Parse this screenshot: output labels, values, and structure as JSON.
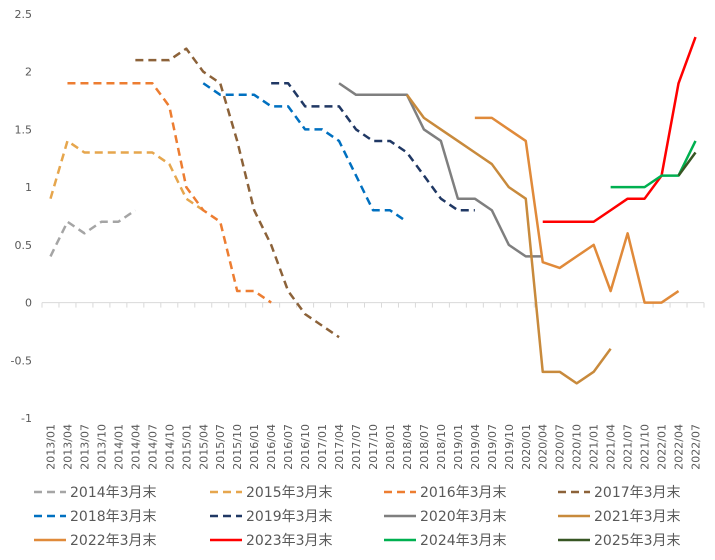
{
  "chart_data": {
    "type": "line",
    "title": "",
    "xlabel": "",
    "ylabel": "",
    "ylim": [
      -1,
      2.5
    ],
    "yticks": [
      -1,
      -0.5,
      0,
      0.5,
      1,
      1.5,
      2,
      2.5
    ],
    "ytick_labels": [
      "-1",
      "-0.5",
      "0",
      "0.5",
      "1",
      "1.5",
      "2",
      "2.5"
    ],
    "grid": "none",
    "legend_position": "bottom",
    "categories": [
      "2013/01",
      "2013/04",
      "2013/07",
      "2013/10",
      "2014/01",
      "2014/04",
      "2014/07",
      "2014/10",
      "2015/01",
      "2015/04",
      "2015/07",
      "2015/10",
      "2016/01",
      "2016/04",
      "2016/07",
      "2016/10",
      "2017/01",
      "2017/04",
      "2017/07",
      "2017/10",
      "2018/01",
      "2018/04",
      "2018/07",
      "2018/10",
      "2019/01",
      "2019/04",
      "2019/07",
      "2019/10",
      "2020/01",
      "2020/04",
      "2020/07",
      "2020/10",
      "2021/01",
      "2021/04",
      "2021/07",
      "2021/10",
      "2022/01",
      "2022/04",
      "2022/07"
    ],
    "series": [
      {
        "name": "2014年3月末",
        "color": "#a5a5a5",
        "dash": true,
        "values": [
          0.4,
          0.7,
          0.6,
          0.7,
          0.7,
          0.8,
          null,
          null,
          null,
          null,
          null,
          null,
          null,
          null,
          null,
          null,
          null,
          null,
          null,
          null,
          null,
          null,
          null,
          null,
          null,
          null,
          null,
          null,
          null,
          null,
          null,
          null,
          null,
          null,
          null,
          null,
          null,
          null,
          null
        ]
      },
      {
        "name": "2015年3月末",
        "color": "#e6a64d",
        "dash": true,
        "values": [
          0.9,
          1.4,
          1.3,
          1.3,
          1.3,
          1.3,
          1.3,
          1.2,
          0.9,
          0.8,
          null,
          null,
          null,
          null,
          null,
          null,
          null,
          null,
          null,
          null,
          null,
          null,
          null,
          null,
          null,
          null,
          null,
          null,
          null,
          null,
          null,
          null,
          null,
          null,
          null,
          null,
          null,
          null,
          null
        ]
      },
      {
        "name": "2016年3月末",
        "color": "#ed7d31",
        "dash": true,
        "values": [
          null,
          1.9,
          1.9,
          1.9,
          1.9,
          1.9,
          1.9,
          1.7,
          1.0,
          0.8,
          0.7,
          0.1,
          0.1,
          0.0,
          null,
          null,
          null,
          null,
          null,
          null,
          null,
          null,
          null,
          null,
          null,
          null,
          null,
          null,
          null,
          null,
          null,
          null,
          null,
          null,
          null,
          null,
          null,
          null,
          null
        ]
      },
      {
        "name": "2017年3月末",
        "color": "#8c6239",
        "dash": true,
        "values": [
          null,
          null,
          null,
          null,
          null,
          2.1,
          2.1,
          2.1,
          2.2,
          2.0,
          1.9,
          1.4,
          0.8,
          0.5,
          0.1,
          -0.1,
          -0.2,
          -0.3,
          null,
          null,
          null,
          null,
          null,
          null,
          null,
          null,
          null,
          null,
          null,
          null,
          null,
          null,
          null,
          null,
          null,
          null,
          null,
          null,
          null
        ]
      },
      {
        "name": "2018年3月末",
        "color": "#0070c0",
        "dash": true,
        "values": [
          null,
          null,
          null,
          null,
          null,
          null,
          null,
          null,
          null,
          1.9,
          1.8,
          1.8,
          1.8,
          1.7,
          1.7,
          1.5,
          1.5,
          1.4,
          1.1,
          0.8,
          0.8,
          0.7,
          null,
          null,
          null,
          null,
          null,
          null,
          null,
          null,
          null,
          null,
          null,
          null,
          null,
          null,
          null,
          null,
          null
        ]
      },
      {
        "name": "2019年3月末",
        "color": "#203864",
        "dash": true,
        "values": [
          null,
          null,
          null,
          null,
          null,
          null,
          null,
          null,
          null,
          null,
          null,
          null,
          null,
          1.9,
          1.9,
          1.7,
          1.7,
          1.7,
          1.5,
          1.4,
          1.4,
          1.3,
          1.1,
          0.9,
          0.8,
          0.8,
          null,
          null,
          null,
          null,
          null,
          null,
          null,
          null,
          null,
          null,
          null,
          null,
          null
        ]
      },
      {
        "name": "2020年3月末",
        "color": "#7f7f7f",
        "dash": false,
        "values": [
          null,
          null,
          null,
          null,
          null,
          null,
          null,
          null,
          null,
          null,
          null,
          null,
          null,
          null,
          null,
          null,
          null,
          1.9,
          1.8,
          1.8,
          1.8,
          1.8,
          1.5,
          1.4,
          0.9,
          0.9,
          0.8,
          0.5,
          0.4,
          0.4,
          null,
          null,
          null,
          null,
          null,
          null,
          null,
          null,
          null
        ]
      },
      {
        "name": "2021年3月末",
        "color": "#c88a3c",
        "dash": false,
        "values": [
          null,
          null,
          null,
          null,
          null,
          null,
          null,
          null,
          null,
          null,
          null,
          null,
          null,
          null,
          null,
          null,
          null,
          null,
          null,
          null,
          null,
          1.8,
          1.6,
          1.5,
          1.4,
          1.3,
          1.2,
          1.0,
          0.9,
          -0.6,
          -0.6,
          -0.7,
          -0.6,
          -0.4,
          null,
          null,
          null,
          null,
          null
        ]
      },
      {
        "name": "2022年3月末",
        "color": "#e08a3a",
        "dash": false,
        "values": [
          null,
          null,
          null,
          null,
          null,
          null,
          null,
          null,
          null,
          null,
          null,
          null,
          null,
          null,
          null,
          null,
          null,
          null,
          null,
          null,
          null,
          null,
          null,
          null,
          null,
          1.6,
          1.6,
          1.5,
          1.4,
          0.35,
          0.3,
          0.4,
          0.5,
          0.1,
          0.6,
          0.0,
          0.0,
          0.1,
          null
        ]
      },
      {
        "name": "2023年3月末",
        "color": "#ff0000",
        "dash": false,
        "values": [
          null,
          null,
          null,
          null,
          null,
          null,
          null,
          null,
          null,
          null,
          null,
          null,
          null,
          null,
          null,
          null,
          null,
          null,
          null,
          null,
          null,
          null,
          null,
          null,
          null,
          null,
          null,
          null,
          null,
          0.7,
          0.7,
          0.7,
          0.7,
          0.8,
          0.9,
          0.9,
          1.1,
          1.9,
          2.3
        ]
      },
      {
        "name": "2024年3月末",
        "color": "#00b050",
        "dash": false,
        "values": [
          null,
          null,
          null,
          null,
          null,
          null,
          null,
          null,
          null,
          null,
          null,
          null,
          null,
          null,
          null,
          null,
          null,
          null,
          null,
          null,
          null,
          null,
          null,
          null,
          null,
          null,
          null,
          null,
          null,
          null,
          null,
          null,
          null,
          1.0,
          1.0,
          1.0,
          1.1,
          1.1,
          1.4
        ]
      },
      {
        "name": "2025年3月末",
        "color": "#375623",
        "dash": false,
        "values": [
          null,
          null,
          null,
          null,
          null,
          null,
          null,
          null,
          null,
          null,
          null,
          null,
          null,
          null,
          null,
          null,
          null,
          null,
          null,
          null,
          null,
          null,
          null,
          null,
          null,
          null,
          null,
          null,
          null,
          null,
          null,
          null,
          null,
          null,
          null,
          null,
          null,
          1.1,
          1.3
        ]
      }
    ]
  }
}
